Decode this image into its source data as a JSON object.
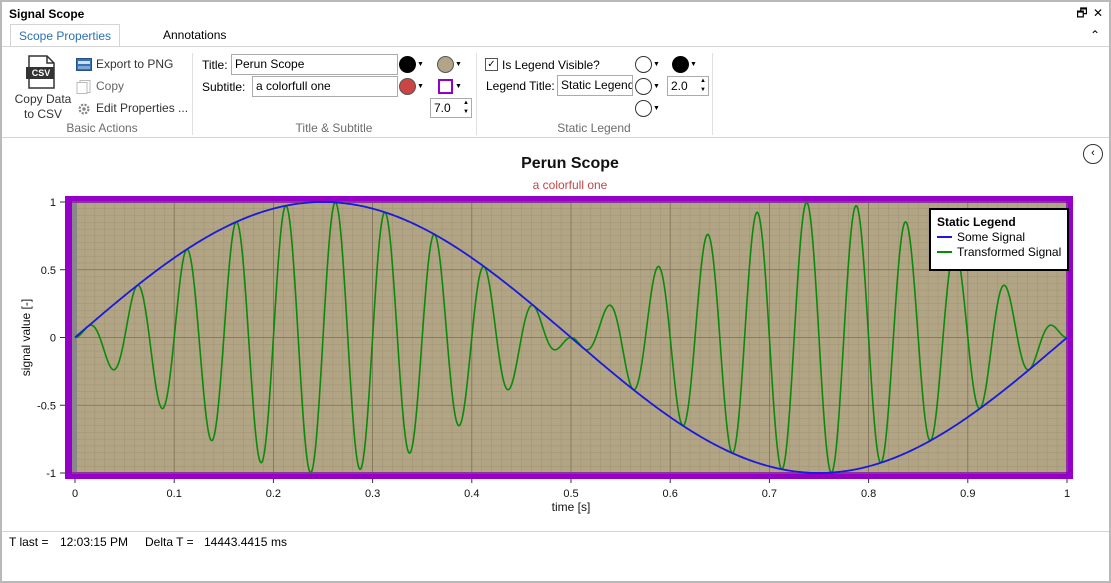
{
  "window": {
    "title": "Signal Scope",
    "restore_glyph": "🗗",
    "close_glyph": "✕",
    "collapse_ribbon_glyph": "⌃"
  },
  "tabs": [
    {
      "label": "Scope Properties",
      "active": true
    },
    {
      "label": "Annotations",
      "active": false
    }
  ],
  "ribbon": {
    "basic_actions": {
      "group_label": "Basic Actions",
      "copy_csv_label_line1": "Copy Data",
      "copy_csv_label_line2": "to CSV",
      "csv_icon_text": "CSV",
      "export_png_label": "Export to PNG",
      "copy_label": "Copy",
      "edit_properties_label": "Edit Properties ..."
    },
    "title_subtitle": {
      "group_label": "Title & Subtitle",
      "title_label": "Title:",
      "title_value": "Perun Scope",
      "subtitle_label": "Subtitle:",
      "subtitle_value": "a colorfull one",
      "title_color": "#000000",
      "subtitle_color": "#cc4444",
      "background_color": "#b2a585",
      "border_color": "#9400c8",
      "border_width": "7.0"
    },
    "static_legend": {
      "group_label": "Static Legend",
      "is_visible_label": "Is Legend Visible?",
      "is_visible_checked": true,
      "legend_title_label": "Legend Title:",
      "legend_title_value": "Static Legend",
      "legend_fill_color": "#ffffff",
      "legend_border_color": "#000000",
      "legend_text_color": "#ffffff",
      "legend_title_color": "#ffffff",
      "border_width": "2.0"
    }
  },
  "status": {
    "t_last_label": "T last =",
    "t_last_value": "12:03:15 PM",
    "delta_t_label": "Delta T =",
    "delta_t_value": "14443.4415",
    "delta_t_unit": "ms"
  },
  "chart_data": {
    "type": "line",
    "title": "Perun Scope",
    "subtitle": "a colorfull one",
    "xlabel": "time [s]",
    "ylabel": "signal value [-]",
    "xlim": [
      0,
      1
    ],
    "ylim": [
      -1,
      1
    ],
    "x_ticks": [
      "0",
      "0.1",
      "0.2",
      "0.3",
      "0.4",
      "0.5",
      "0.6",
      "0.7",
      "0.8",
      "0.9",
      "1"
    ],
    "y_ticks": [
      "1",
      "0.5",
      "0",
      "-0.5",
      "-1"
    ],
    "grid": true,
    "plot_background": "#b2a585",
    "border_color": "#9400c8",
    "legend": {
      "title": "Static Legend",
      "placement": "top-right",
      "entries": [
        "Some Signal",
        "Transformed Signal"
      ]
    },
    "series": [
      {
        "name": "Some Signal",
        "color": "#1a1adc",
        "function": "sin(2*pi*t)",
        "x": [
          0,
          0.05,
          0.1,
          0.15,
          0.2,
          0.25,
          0.3,
          0.35,
          0.4,
          0.45,
          0.5,
          0.55,
          0.6,
          0.65,
          0.7,
          0.75,
          0.8,
          0.85,
          0.9,
          0.95,
          1.0
        ],
        "values": [
          0,
          0.31,
          0.59,
          0.81,
          0.95,
          1.0,
          0.95,
          0.81,
          0.59,
          0.31,
          0,
          -0.31,
          -0.59,
          -0.81,
          -0.95,
          -1.0,
          -0.95,
          -0.81,
          -0.59,
          -0.31,
          0
        ]
      },
      {
        "name": "Transformed Signal",
        "color": "#0a8a0a",
        "function": "sin(2*pi*t) * sin(2*pi*20*t)",
        "x": [
          0,
          0.1,
          0.2,
          0.3,
          0.4,
          0.5,
          0.6,
          0.7,
          0.8,
          0.9,
          1.0
        ],
        "values": [
          0,
          0,
          0,
          0,
          0,
          0,
          0,
          0,
          0,
          0,
          0
        ]
      }
    ]
  }
}
